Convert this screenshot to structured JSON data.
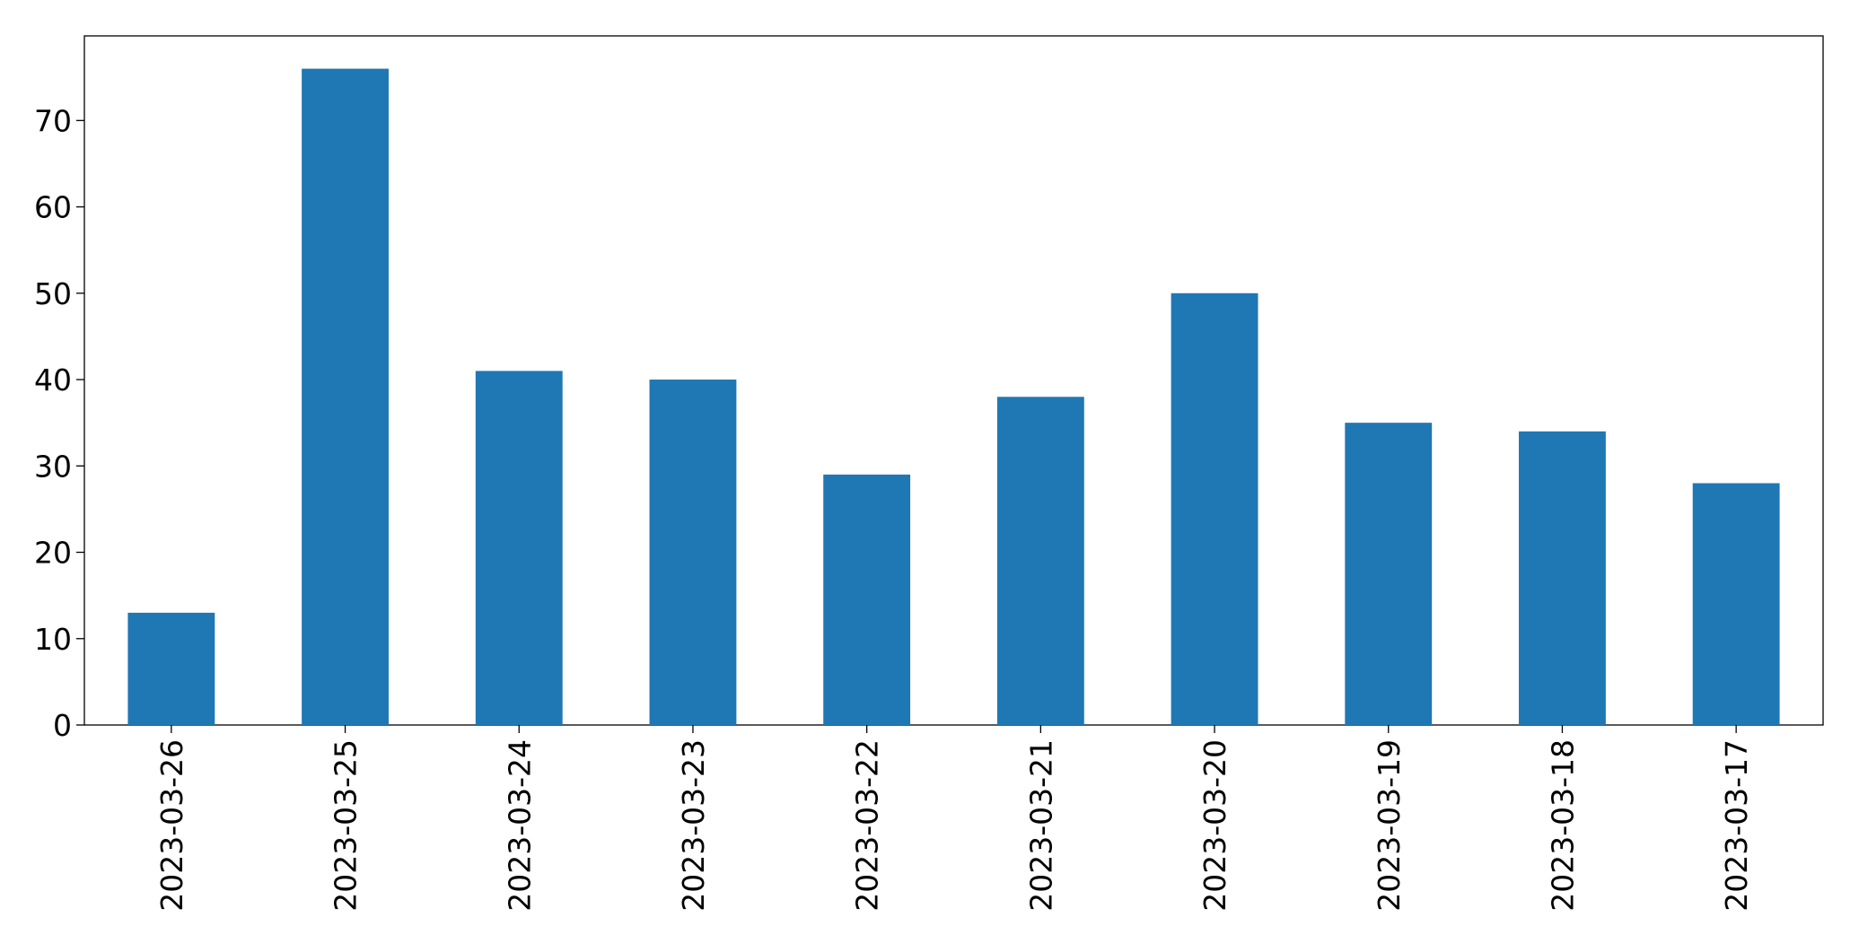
{
  "chart_data": {
    "type": "bar",
    "categories": [
      "2023-03-26",
      "2023-03-25",
      "2023-03-24",
      "2023-03-23",
      "2023-03-22",
      "2023-03-21",
      "2023-03-20",
      "2023-03-19",
      "2023-03-18",
      "2023-03-17"
    ],
    "values": [
      13,
      76,
      41,
      40,
      29,
      38,
      50,
      35,
      34,
      28
    ],
    "color": "#1f77b4",
    "ylim": [
      0,
      79.8
    ],
    "yticks": [
      0,
      10,
      20,
      30,
      40,
      50,
      60,
      70
    ],
    "grid": false
  }
}
